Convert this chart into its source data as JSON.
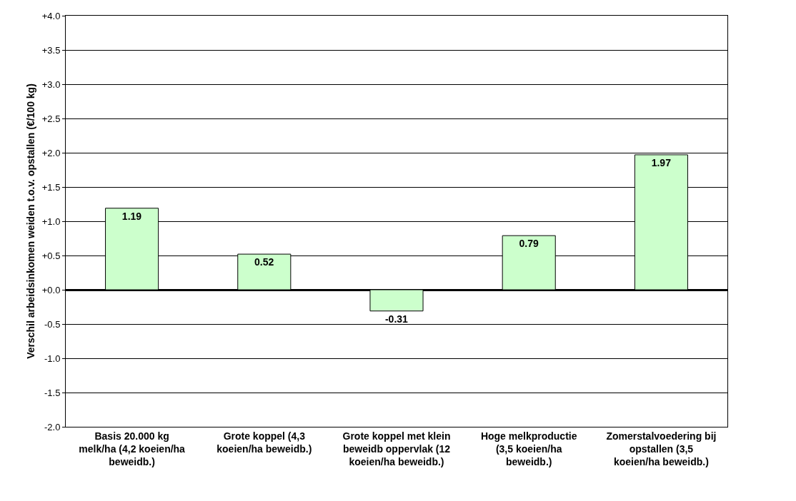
{
  "chart_data": {
    "type": "bar",
    "ylabel": "Verschil arbeidsinkomen weiden t.o.v. opstallen (€/100 kg)",
    "categories": [
      "Basis 20.000 kg melk/ha (4,2 koeien/ha beweidb.)",
      "Grote koppel (4,3 koeien/ha beweidb.)",
      "Grote koppel met klein beweidb oppervlak (12 koeien/ha beweidb.)",
      "Hoge melkproductie (3,5 koeien/ha beweidb.)",
      "Zomerstalvoedering bij opstallen (3,5 koeien/ha beweidb.)"
    ],
    "values": [
      1.19,
      0.52,
      -0.31,
      0.79,
      1.97
    ],
    "color": "#ccffcc",
    "ylim": [
      -2,
      4
    ],
    "yticks": [
      {
        "value": 4,
        "label": "+4.0"
      },
      {
        "value": 3.5,
        "label": "+3.5"
      },
      {
        "value": 3,
        "label": "+3.0"
      },
      {
        "value": 2.5,
        "label": "+2.5"
      },
      {
        "value": 2,
        "label": "+2.0"
      },
      {
        "value": 1.5,
        "label": "+1.5"
      },
      {
        "value": 1,
        "label": "+1.0"
      },
      {
        "value": 0.5,
        "label": "+0.5"
      },
      {
        "value": 0,
        "label": "+0.0"
      },
      {
        "value": -0.5,
        "label": "-0.5"
      },
      {
        "value": -1,
        "label": "-1.0"
      },
      {
        "value": -1.5,
        "label": "-1.5"
      },
      {
        "value": -2,
        "label": "-2.0"
      }
    ],
    "grid": "y",
    "data_labels": true
  }
}
